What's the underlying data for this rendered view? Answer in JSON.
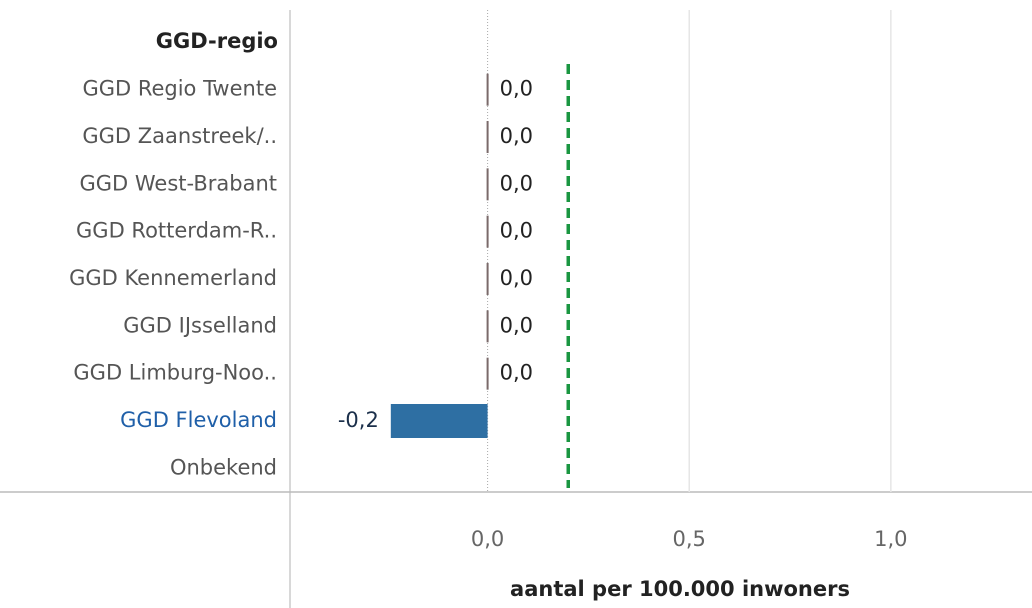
{
  "chart_data": {
    "type": "bar",
    "orientation": "horizontal",
    "category_header": "GGD-regio",
    "categories": [
      "GGD Regio Twente",
      "GGD Zaanstreek/..",
      "GGD West-Brabant",
      "GGD Rotterdam-R..",
      "GGD Kennemerland",
      "GGD IJsselland",
      "GGD Limburg-Noo..",
      "GGD Flevoland",
      "Onbekend"
    ],
    "values": [
      0,
      0,
      0,
      0,
      0,
      0,
      0,
      -0.24,
      null
    ],
    "value_labels": [
      "0,0",
      "0,0",
      "0,0",
      "0,0",
      "0,0",
      "0,0",
      "0,0",
      "-0,2",
      null
    ],
    "color": "#2e6fa3",
    "label_colors": [
      "#555555",
      "#555555",
      "#555555",
      "#555555",
      "#555555",
      "#555555",
      "#555555",
      "#1f5fa8",
      "#555555"
    ],
    "x_label": "aantal per 100.000 inwoners",
    "xlim": [
      -0.49,
      1.35
    ],
    "xticks": [
      {
        "value": 0,
        "label": "0,0"
      },
      {
        "value": 0.5,
        "label": "0,5"
      },
      {
        "value": 1,
        "label": "1,0"
      }
    ],
    "grid": true,
    "reference_line": {
      "value": 0.2,
      "color": "#1a9641"
    }
  }
}
